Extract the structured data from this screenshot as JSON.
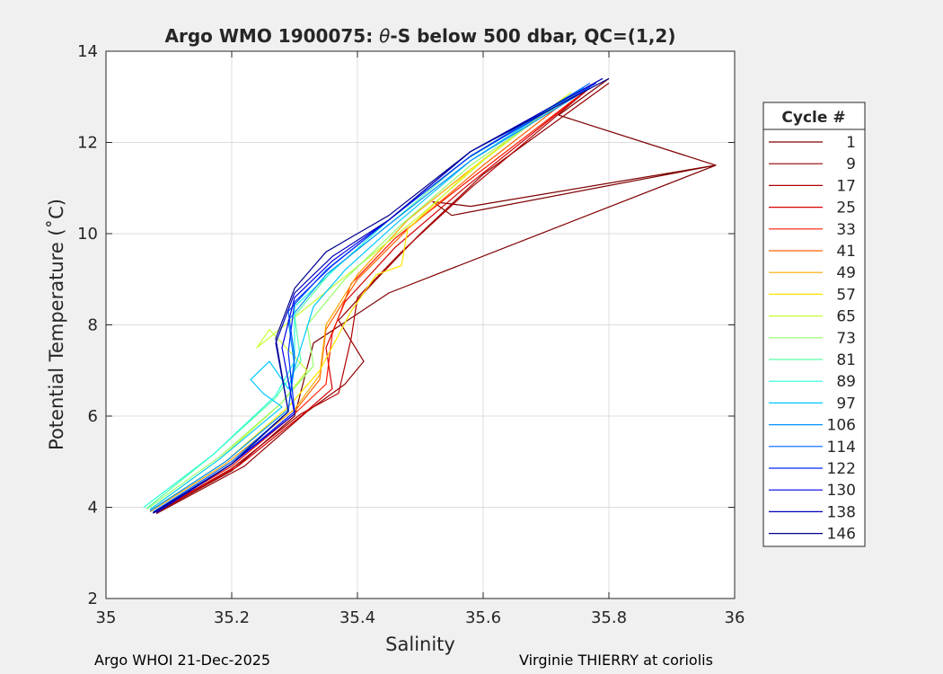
{
  "chart_data": {
    "type": "line",
    "title_parts": [
      "Argo WMO 1900075: ",
      "θ",
      "-S below 500 dbar,  QC=(1,2)"
    ],
    "xlabel": "Salinity",
    "ylabel": "Potential Temperature (˚C)",
    "xlim": [
      35,
      36
    ],
    "ylim": [
      2,
      14
    ],
    "xticks": [
      35,
      35.2,
      35.4,
      35.6,
      35.8,
      36
    ],
    "xtick_labels": [
      "35",
      "35.2",
      "35.4",
      "35.6",
      "35.8",
      "36"
    ],
    "yticks": [
      2,
      4,
      6,
      8,
      10,
      12,
      14
    ],
    "ytick_labels": [
      "2",
      "4",
      "6",
      "8",
      "10",
      "12",
      "14"
    ],
    "grid": true,
    "legend": {
      "title": "Cycle #",
      "placement": "right-outside",
      "entries": [
        "1",
        "9",
        "17",
        "25",
        "33",
        "41",
        "49",
        "57",
        "65",
        "73",
        "81",
        "89",
        "97",
        "106",
        "114",
        "122",
        "130",
        "138",
        "146"
      ],
      "colors": [
        "#7f0000",
        "#930000",
        "#b00000",
        "#d40000",
        "#ff1a00",
        "#ff6000",
        "#ffa500",
        "#ffe600",
        "#c8ff37",
        "#96ff69",
        "#5affa5",
        "#28ffd7",
        "#00c8ff",
        "#0090ff",
        "#0060ff",
        "#0028ff",
        "#0000e6",
        "#0000b8",
        "#00008f"
      ]
    },
    "series": [
      {
        "name": "1",
        "values": [
          [
            35.08,
            3.88
          ],
          [
            35.2,
            4.8
          ],
          [
            35.3,
            6.0
          ],
          [
            35.33,
            7.6
          ],
          [
            35.45,
            8.7
          ],
          [
            35.97,
            11.5
          ],
          [
            35.55,
            10.4
          ],
          [
            35.52,
            10.7
          ],
          [
            35.58,
            10.6
          ],
          [
            35.97,
            11.5
          ],
          [
            35.72,
            12.6
          ],
          [
            35.8,
            13.4
          ]
        ]
      },
      {
        "name": "9",
        "values": [
          [
            35.08,
            3.86
          ],
          [
            35.22,
            4.9
          ],
          [
            35.32,
            6.1
          ],
          [
            35.38,
            6.7
          ],
          [
            35.41,
            7.2
          ],
          [
            35.37,
            8.1
          ],
          [
            35.43,
            9.0
          ],
          [
            35.5,
            10.0
          ],
          [
            35.6,
            11.3
          ],
          [
            35.8,
            13.3
          ]
        ]
      },
      {
        "name": "17",
        "values": [
          [
            35.075,
            3.87
          ],
          [
            35.2,
            4.85
          ],
          [
            35.31,
            6.05
          ],
          [
            35.37,
            6.5
          ],
          [
            35.39,
            7.7
          ],
          [
            35.4,
            8.6
          ],
          [
            35.47,
            9.6
          ],
          [
            35.58,
            11.0
          ],
          [
            35.77,
            13.2
          ]
        ]
      },
      {
        "name": "25",
        "values": [
          [
            35.08,
            3.9
          ],
          [
            35.21,
            4.9
          ],
          [
            35.31,
            6.0
          ],
          [
            35.36,
            6.6
          ],
          [
            35.35,
            7.5
          ],
          [
            35.38,
            8.5
          ],
          [
            35.46,
            9.7
          ],
          [
            35.57,
            11.0
          ],
          [
            35.76,
            13.1
          ]
        ]
      },
      {
        "name": "33",
        "values": [
          [
            35.075,
            3.89
          ],
          [
            35.2,
            4.9
          ],
          [
            35.3,
            6.05
          ],
          [
            35.35,
            6.7
          ],
          [
            35.36,
            7.8
          ],
          [
            35.39,
            8.9
          ],
          [
            35.46,
            9.9
          ],
          [
            35.58,
            11.2
          ],
          [
            35.75,
            13.0
          ]
        ]
      },
      {
        "name": "41",
        "values": [
          [
            35.08,
            3.88
          ],
          [
            35.2,
            4.95
          ],
          [
            35.3,
            6.1
          ],
          [
            35.34,
            6.8
          ],
          [
            35.35,
            7.9
          ],
          [
            35.4,
            9.0
          ],
          [
            35.48,
            10.1
          ],
          [
            35.6,
            11.5
          ],
          [
            35.74,
            13.0
          ]
        ]
      },
      {
        "name": "49",
        "values": [
          [
            35.07,
            3.9
          ],
          [
            35.19,
            4.95
          ],
          [
            35.3,
            6.15
          ],
          [
            35.34,
            6.9
          ],
          [
            35.35,
            8.0
          ],
          [
            35.4,
            9.1
          ],
          [
            35.48,
            10.3
          ],
          [
            35.57,
            11.3
          ],
          [
            35.73,
            13.0
          ]
        ]
      },
      {
        "name": "57",
        "values": [
          [
            35.07,
            3.92
          ],
          [
            35.19,
            5.0
          ],
          [
            35.29,
            6.2
          ],
          [
            35.34,
            7.0
          ],
          [
            35.39,
            8.3
          ],
          [
            35.43,
            9.1
          ],
          [
            35.47,
            9.3
          ],
          [
            35.48,
            10.1
          ],
          [
            35.58,
            11.4
          ],
          [
            35.73,
            13.0
          ]
        ]
      },
      {
        "name": "65",
        "values": [
          [
            35.07,
            3.95
          ],
          [
            35.18,
            5.05
          ],
          [
            35.28,
            6.3
          ],
          [
            35.32,
            7.0
          ],
          [
            35.26,
            7.9
          ],
          [
            35.24,
            7.5
          ],
          [
            35.33,
            8.5
          ],
          [
            35.42,
            9.5
          ],
          [
            35.5,
            10.4
          ],
          [
            35.6,
            11.6
          ],
          [
            35.74,
            13.1
          ]
        ]
      },
      {
        "name": "73",
        "values": [
          [
            35.065,
            3.96
          ],
          [
            35.18,
            5.1
          ],
          [
            35.28,
            6.3
          ],
          [
            35.33,
            7.1
          ],
          [
            35.32,
            8.0
          ],
          [
            35.38,
            9.0
          ],
          [
            35.47,
            10.2
          ],
          [
            35.58,
            11.5
          ],
          [
            35.75,
            13.1
          ]
        ]
      },
      {
        "name": "81",
        "values": [
          [
            35.065,
            3.98
          ],
          [
            35.17,
            5.15
          ],
          [
            35.27,
            6.4
          ],
          [
            35.31,
            7.2
          ],
          [
            35.3,
            8.2
          ],
          [
            35.36,
            9.2
          ],
          [
            35.45,
            10.2
          ],
          [
            35.57,
            11.6
          ],
          [
            35.75,
            13.1
          ]
        ]
      },
      {
        "name": "89",
        "values": [
          [
            35.06,
            4.0
          ],
          [
            35.17,
            5.15
          ],
          [
            35.27,
            6.45
          ],
          [
            35.3,
            7.2
          ],
          [
            35.3,
            8.4
          ],
          [
            35.37,
            9.3
          ],
          [
            35.45,
            10.3
          ],
          [
            35.58,
            11.7
          ],
          [
            35.76,
            13.2
          ]
        ]
      },
      {
        "name": "97",
        "values": [
          [
            35.07,
            3.95
          ],
          [
            35.18,
            5.05
          ],
          [
            35.28,
            6.2
          ],
          [
            35.25,
            6.5
          ],
          [
            35.23,
            6.8
          ],
          [
            35.26,
            7.2
          ],
          [
            35.29,
            6.6
          ],
          [
            35.31,
            7.5
          ],
          [
            35.33,
            8.4
          ],
          [
            35.38,
            9.2
          ],
          [
            35.46,
            10.2
          ],
          [
            35.58,
            11.6
          ],
          [
            35.76,
            13.2
          ]
        ]
      },
      {
        "name": "106",
        "values": [
          [
            35.07,
            3.92
          ],
          [
            35.19,
            5.0
          ],
          [
            35.29,
            6.15
          ],
          [
            35.3,
            7.1
          ],
          [
            35.29,
            8.1
          ],
          [
            35.35,
            9.1
          ],
          [
            35.45,
            10.2
          ],
          [
            35.58,
            11.6
          ],
          [
            35.77,
            13.2
          ]
        ]
      },
      {
        "name": "114",
        "values": [
          [
            35.075,
            3.9
          ],
          [
            35.2,
            5.0
          ],
          [
            35.29,
            6.1
          ],
          [
            35.3,
            7.3
          ],
          [
            35.29,
            8.3
          ],
          [
            35.35,
            9.2
          ],
          [
            35.45,
            10.3
          ],
          [
            35.58,
            11.7
          ],
          [
            35.77,
            13.3
          ]
        ]
      },
      {
        "name": "122",
        "values": [
          [
            35.075,
            3.88
          ],
          [
            35.2,
            4.95
          ],
          [
            35.3,
            6.1
          ],
          [
            35.29,
            7.4
          ],
          [
            35.3,
            8.5
          ],
          [
            35.36,
            9.3
          ],
          [
            35.45,
            10.3
          ],
          [
            35.58,
            11.7
          ],
          [
            35.78,
            13.3
          ]
        ]
      },
      {
        "name": "130",
        "values": [
          [
            35.08,
            3.88
          ],
          [
            35.2,
            4.95
          ],
          [
            35.3,
            6.05
          ],
          [
            35.28,
            7.5
          ],
          [
            35.3,
            8.6
          ],
          [
            35.36,
            9.4
          ],
          [
            35.45,
            10.3
          ],
          [
            35.58,
            11.8
          ],
          [
            35.79,
            13.4
          ]
        ]
      },
      {
        "name": "138",
        "values": [
          [
            35.075,
            3.87
          ],
          [
            35.2,
            4.95
          ],
          [
            35.29,
            6.1
          ],
          [
            35.27,
            7.6
          ],
          [
            35.3,
            8.7
          ],
          [
            35.36,
            9.5
          ],
          [
            35.45,
            10.3
          ],
          [
            35.58,
            11.8
          ],
          [
            35.79,
            13.4
          ]
        ]
      },
      {
        "name": "146",
        "values": [
          [
            35.075,
            3.88
          ],
          [
            35.2,
            4.95
          ],
          [
            35.29,
            6.1
          ],
          [
            35.27,
            7.7
          ],
          [
            35.3,
            8.8
          ],
          [
            35.35,
            9.6
          ],
          [
            35.45,
            10.4
          ],
          [
            35.58,
            11.8
          ],
          [
            35.8,
            13.4
          ]
        ]
      }
    ]
  },
  "footer": {
    "left": "Argo WHOI 21-Dec-2025",
    "right": "Virginie THIERRY at coriolis"
  }
}
